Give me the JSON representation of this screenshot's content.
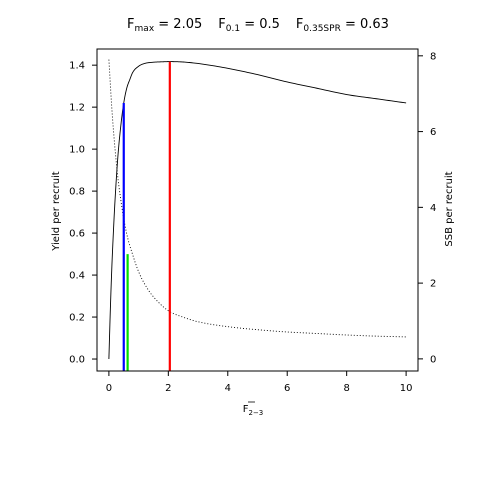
{
  "chart_data": {
    "type": "line",
    "title": {
      "items": [
        {
          "main": "F",
          "sub": "max",
          "rest": " = 2.05"
        },
        {
          "main": "F",
          "sub": "0.1",
          "rest": " = 0.5"
        },
        {
          "main": "F",
          "sub": "0.35SPR",
          "rest": " = 0.63"
        }
      ]
    },
    "xlabel": {
      "main": "F",
      "sub": "2−3"
    },
    "ylabel_left": "Yield per recruit",
    "ylabel_right": "SSB per recruit",
    "xlim": [
      -0.4,
      10.4
    ],
    "ylim_left": [
      -0.057,
      1.477
    ],
    "ylim_right": [
      -0.32,
      8.18
    ],
    "xticks": [
      0,
      2,
      4,
      6,
      8,
      10
    ],
    "xtick_labels": [
      "0",
      "2",
      "4",
      "6",
      "8",
      "10"
    ],
    "yticks_left": [
      0.0,
      0.2,
      0.4,
      0.6,
      0.8,
      1.0,
      1.2,
      1.4
    ],
    "ytick_labels_left": [
      "0.0",
      "0.2",
      "0.4",
      "0.6",
      "0.8",
      "1.0",
      "1.2",
      "1.4"
    ],
    "yticks_right": [
      0,
      2,
      4,
      6,
      8
    ],
    "ytick_labels_right": [
      "0",
      "2",
      "4",
      "6",
      "8"
    ],
    "series": [
      {
        "axis": "left",
        "line_style": "solid",
        "color": "#000000",
        "x": [
          0,
          0.05,
          0.1,
          0.15,
          0.2,
          0.3,
          0.4,
          0.5,
          0.6,
          0.7,
          0.8,
          1.0,
          1.2,
          1.5,
          1.8,
          2.05,
          2.5,
          3.0,
          4.0,
          5.0,
          6.0,
          7.0,
          8.0,
          9.0,
          10.0
        ],
        "y": [
          0,
          0.24,
          0.44,
          0.6,
          0.74,
          0.96,
          1.11,
          1.22,
          1.29,
          1.33,
          1.365,
          1.395,
          1.408,
          1.414,
          1.416,
          1.417,
          1.415,
          1.408,
          1.385,
          1.355,
          1.32,
          1.29,
          1.26,
          1.24,
          1.22
        ]
      },
      {
        "axis": "right",
        "line_style": "dotted",
        "color": "#000000",
        "x": [
          0,
          0.1,
          0.2,
          0.3,
          0.4,
          0.5,
          0.63,
          0.8,
          1.0,
          1.3,
          1.6,
          2.0,
          2.5,
          3.0,
          4.0,
          5.0,
          6.0,
          7.0,
          8.0,
          9.0,
          10.0
        ],
        "y": [
          7.9,
          6.6,
          5.6,
          4.8,
          4.2,
          3.7,
          3.2,
          2.75,
          2.3,
          1.85,
          1.55,
          1.27,
          1.1,
          0.98,
          0.85,
          0.77,
          0.71,
          0.67,
          0.63,
          0.6,
          0.58
        ]
      }
    ],
    "reference_lines": [
      {
        "name": "Fmax",
        "x": 2.05,
        "y_top": 1.416,
        "color": "#ff0000"
      },
      {
        "name": "F0.1",
        "x": 0.5,
        "y_top": 1.22,
        "color": "#0000ff"
      },
      {
        "name": "F0.35SPR",
        "x": 0.63,
        "y_top": 0.5,
        "color": "#00dd00"
      }
    ]
  }
}
